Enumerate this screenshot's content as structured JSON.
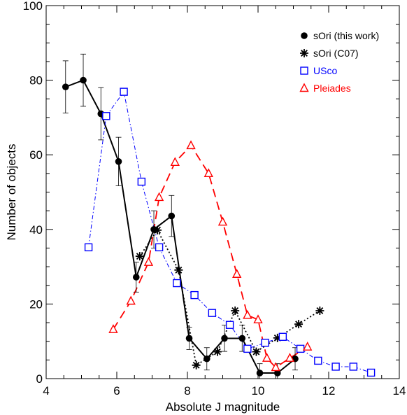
{
  "chart_data": {
    "type": "line",
    "title": "",
    "xlabel": "Absolute J magnitude",
    "ylabel": "Number of objects",
    "xlim": [
      4,
      14
    ],
    "ylim": [
      0,
      100
    ],
    "xticks": [
      4,
      6,
      8,
      10,
      12,
      14
    ],
    "yticks": [
      0,
      20,
      40,
      60,
      80,
      100
    ],
    "grid": false,
    "legend_placement": "top-right",
    "series": [
      {
        "name": "sOri (this work)",
        "color": "#000000",
        "marker": "filled-circle",
        "line": "solid",
        "x": [
          4.55,
          5.05,
          5.55,
          6.05,
          6.55,
          7.05,
          7.55,
          8.05,
          8.55,
          9.05,
          9.55,
          10.05,
          10.55,
          11.05
        ],
        "y": [
          78.2,
          80.0,
          71.0,
          58.2,
          27.2,
          40.0,
          43.6,
          10.8,
          5.3,
          10.8,
          10.8,
          1.5,
          1.5,
          5.3
        ],
        "yerr": [
          7.0,
          7.0,
          7.0,
          6.5,
          4.0,
          5.0,
          5.5,
          3.0,
          3.0,
          3.5,
          3.5,
          2.5,
          2.5,
          3.0
        ]
      },
      {
        "name": "sOri (C07)",
        "color": "#000000",
        "marker": "asterisk",
        "line": "dotted",
        "x": [
          6.65,
          7.15,
          7.75,
          8.25,
          8.85,
          9.35,
          9.95,
          10.55,
          11.15,
          11.75
        ],
        "y": [
          32.8,
          39.8,
          29.1,
          3.6,
          7.2,
          18.2,
          7.2,
          10.9,
          14.6,
          18.2
        ]
      },
      {
        "name": "USco",
        "color": "#0000ff",
        "marker": "open-square",
        "line": "dash-dot",
        "x": [
          5.2,
          5.7,
          6.2,
          6.7,
          7.2,
          7.7,
          8.2,
          8.7,
          9.2,
          9.7,
          10.2,
          10.7,
          11.2,
          11.7,
          12.2,
          12.7,
          13.2
        ],
        "y": [
          35.2,
          70.4,
          76.9,
          52.8,
          35.2,
          25.6,
          22.4,
          17.6,
          14.4,
          8.0,
          9.6,
          11.2,
          8.0,
          4.8,
          3.2,
          3.2,
          1.6
        ]
      },
      {
        "name": "Pleiades",
        "color": "#ff0000",
        "marker": "open-triangle",
        "line": "dashed",
        "x": [
          5.9,
          6.4,
          6.9,
          7.2,
          7.65,
          8.1,
          8.6,
          9.0,
          9.4,
          9.7,
          10.0,
          10.25,
          10.5,
          10.9,
          11.4
        ],
        "y": [
          13.2,
          20.8,
          31.2,
          48.6,
          58.0,
          62.5,
          55.0,
          42.0,
          28.0,
          17.0,
          15.8,
          5.5,
          3.0,
          5.5,
          8.5
        ]
      }
    ]
  }
}
